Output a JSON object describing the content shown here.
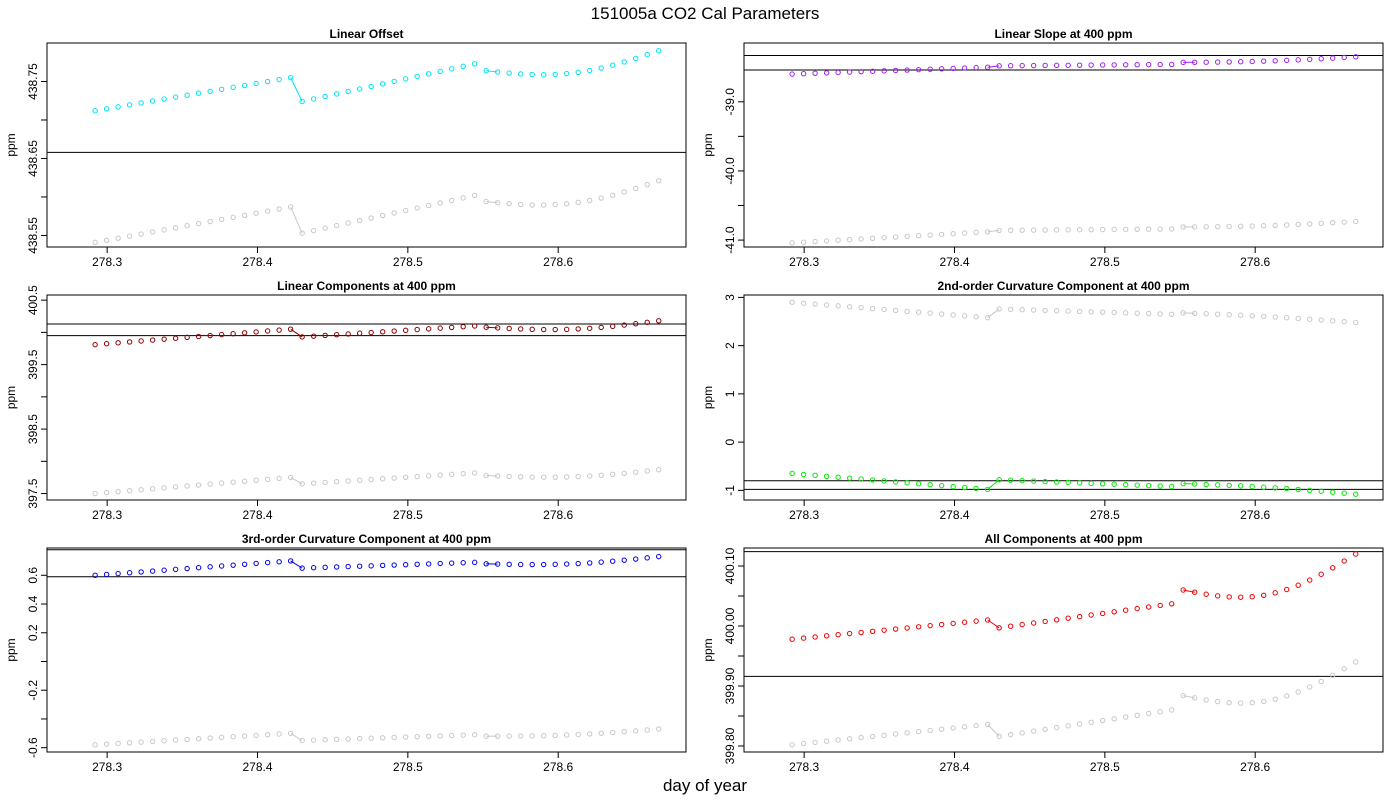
{
  "figure": {
    "title": "151005a   CO2 Cal Parameters",
    "xlabel": "day of year"
  },
  "chart_data": [
    {
      "type": "scatter",
      "title": "Linear Offset",
      "ylabel": "ppm",
      "xlim": [
        278.26,
        278.685
      ],
      "ylim": [
        438.535,
        438.8
      ],
      "xticks": [
        278.3,
        278.4,
        278.5,
        278.6
      ],
      "xtick_labels": [
        "278.3",
        "278.4",
        "278.5",
        "278.6"
      ],
      "yticks": [
        438.55,
        438.6,
        438.65,
        438.7,
        438.75
      ],
      "ytick_labels": [
        "438.55",
        "",
        "438.65",
        "",
        "438.75"
      ],
      "hlines": [
        438.658
      ],
      "series": [
        {
          "color": "#00e5ee",
          "values": [
            438.712,
            438.755,
            438.724,
            438.773,
            438.764,
            438.761,
            438.79
          ]
        },
        {
          "color": "#c8c8c8",
          "values": [
            438.541,
            438.587,
            438.553,
            438.602,
            438.594,
            438.592,
            438.621
          ]
        }
      ]
    },
    {
      "type": "scatter",
      "title": "Linear Slope at 400 ppm",
      "ylabel": "ppm",
      "xlim": [
        278.26,
        278.685
      ],
      "ylim": [
        -41.1,
        -38.15
      ],
      "xticks": [
        278.3,
        278.4,
        278.5,
        278.6
      ],
      "xtick_labels": [
        "278.3",
        "278.4",
        "278.5",
        "278.6"
      ],
      "yticks": [
        -41.0,
        -40.5,
        -40.0,
        -39.5,
        -39.0
      ],
      "ytick_labels": [
        "-41.0",
        "",
        "-40.0",
        "",
        "-39.0"
      ],
      "hlines": [
        -38.33,
        -38.54
      ],
      "series": [
        {
          "color": "#a020f0",
          "values": [
            -38.6,
            -38.5,
            -38.48,
            -38.46,
            -38.43,
            -38.41,
            -38.35
          ]
        },
        {
          "color": "#c8c8c8",
          "values": [
            -41.04,
            -40.88,
            -40.86,
            -40.84,
            -40.81,
            -40.79,
            -40.73
          ]
        }
      ]
    },
    {
      "type": "scatter",
      "title": "Linear Components at 400 ppm",
      "ylabel": "ppm",
      "xlim": [
        278.26,
        278.685
      ],
      "ylim": [
        397.4,
        400.58
      ],
      "xticks": [
        278.3,
        278.4,
        278.5,
        278.6
      ],
      "xtick_labels": [
        "278.3",
        "278.4",
        "278.5",
        "278.6"
      ],
      "yticks": [
        397.5,
        398.0,
        398.5,
        399.0,
        399.5,
        400.0,
        400.5
      ],
      "ytick_labels": [
        "397.5",
        "",
        "398.5",
        "",
        "399.5",
        "",
        "400.5"
      ],
      "hlines": [
        400.13,
        399.95
      ],
      "series": [
        {
          "color": "#8b0000",
          "values": [
            399.81,
            400.05,
            399.93,
            400.1,
            400.08,
            400.05,
            400.18
          ]
        },
        {
          "color": "#c8c8c8",
          "values": [
            397.5,
            397.75,
            397.65,
            397.82,
            397.78,
            397.76,
            397.87
          ]
        }
      ]
    },
    {
      "type": "scatter",
      "title": "2nd-order Curvature Component at 400 ppm",
      "ylabel": "ppm",
      "xlim": [
        278.26,
        278.685
      ],
      "ylim": [
        -1.2,
        3.05
      ],
      "xticks": [
        278.3,
        278.4,
        278.5,
        278.6
      ],
      "xtick_labels": [
        "278.3",
        "278.4",
        "278.5",
        "278.6"
      ],
      "yticks": [
        -1,
        0,
        1,
        2,
        3
      ],
      "ytick_labels": [
        "-1",
        "0",
        "1",
        "2",
        "3"
      ],
      "hlines": [
        -0.8,
        -0.98
      ],
      "series": [
        {
          "color": "#00ee00",
          "values": [
            -0.65,
            -0.98,
            -0.78,
            -0.92,
            -0.86,
            -0.94,
            -1.08
          ]
        },
        {
          "color": "#c8c8c8",
          "values": [
            2.9,
            2.58,
            2.76,
            2.65,
            2.68,
            2.6,
            2.48
          ]
        }
      ]
    },
    {
      "type": "scatter",
      "title": "3rd-order Curvature Component at 400 ppm",
      "ylabel": "ppm",
      "xlim": [
        278.26,
        278.685
      ],
      "ylim": [
        -0.63,
        0.79
      ],
      "xticks": [
        278.3,
        278.4,
        278.5,
        278.6
      ],
      "xtick_labels": [
        "278.3",
        "278.4",
        "278.5",
        "278.6"
      ],
      "yticks": [
        -0.6,
        -0.4,
        -0.2,
        0.0,
        0.2,
        0.4,
        0.6
      ],
      "ytick_labels": [
        "-0.6",
        "",
        "-0.2",
        "",
        "0.2",
        "0.4",
        "0.6"
      ],
      "hlines": [
        0.778,
        0.59
      ],
      "series": [
        {
          "color": "#0000ee",
          "values": [
            0.6,
            0.7,
            0.65,
            0.69,
            0.68,
            0.68,
            0.73
          ]
        },
        {
          "color": "#c8c8c8",
          "values": [
            -0.58,
            -0.5,
            -0.55,
            -0.51,
            -0.52,
            -0.51,
            -0.47
          ]
        }
      ]
    },
    {
      "type": "scatter",
      "title": "All Components at 400 ppm",
      "ylabel": "ppm",
      "xlim": [
        278.26,
        278.685
      ],
      "ylim": [
        399.79,
        400.13
      ],
      "xticks": [
        278.3,
        278.4,
        278.5,
        278.6
      ],
      "xtick_labels": [
        "278.3",
        "278.4",
        "278.5",
        "278.6"
      ],
      "yticks": [
        399.8,
        399.85,
        399.9,
        399.95,
        400.0,
        400.05,
        400.1
      ],
      "ytick_labels": [
        "399.80",
        "",
        "399.90",
        "",
        "400.00",
        "",
        "400.10"
      ],
      "hlines": [
        400.124,
        399.916
      ],
      "series": [
        {
          "color": "#ee0000",
          "values": [
            399.978,
            400.01,
            399.997,
            400.037,
            400.06,
            400.053,
            400.12
          ]
        },
        {
          "color": "#c8c8c8",
          "values": [
            399.802,
            399.836,
            399.816,
            399.86,
            399.884,
            399.876,
            399.94
          ]
        }
      ]
    }
  ]
}
